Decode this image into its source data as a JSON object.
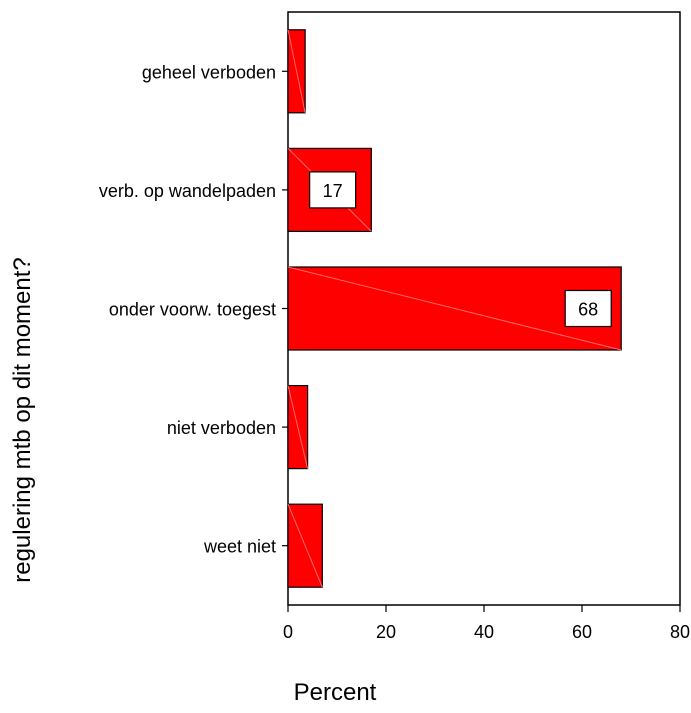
{
  "chart_data": {
    "type": "bar",
    "orientation": "horizontal",
    "categories": [
      "geheel verboden",
      "verb. op wandelpaden",
      "onder voorw. toegest",
      "niet verboden",
      "weet niet"
    ],
    "values": [
      3.5,
      17,
      68,
      4,
      7
    ],
    "data_labels": [
      "",
      "17",
      "68",
      "",
      ""
    ],
    "xlabel": "Percent",
    "ylabel": "regulering mtb op dit moment?",
    "xlim": [
      0,
      80
    ],
    "xticks": [
      "0",
      "20",
      "40",
      "60",
      "80"
    ],
    "grid": false,
    "bar_color": "#ff0000"
  }
}
